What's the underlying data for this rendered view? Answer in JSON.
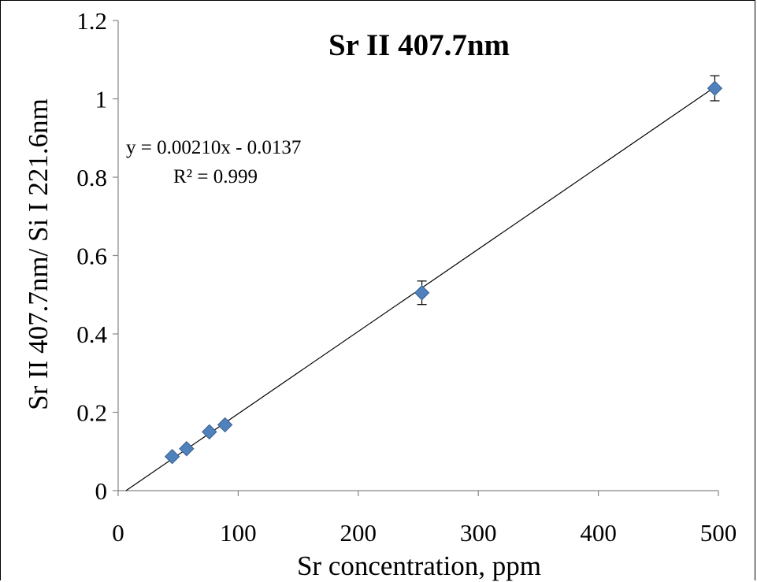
{
  "chart_data": {
    "type": "scatter",
    "title": "Sr II 407.7nm",
    "xlabel": "Sr concentration, ppm",
    "ylabel": "Sr II 407.7nm/ Si I 221.6nm",
    "xlim": [
      0,
      500
    ],
    "ylim": [
      0,
      1.2
    ],
    "x_ticks": [
      0,
      100,
      200,
      300,
      400,
      500
    ],
    "y_ticks": [
      0,
      0.2,
      0.4,
      0.6,
      0.8,
      1,
      1.2
    ],
    "grid": false,
    "legend": "none",
    "series": [
      {
        "x": [
          45,
          57,
          76,
          89,
          253,
          497
        ],
        "y": [
          0.087,
          0.107,
          0.15,
          0.168,
          0.505,
          1.027
        ],
        "error": [
          0,
          0,
          0,
          0,
          0.03,
          0.032
        ],
        "marker": "diamond",
        "color": "#4f81bd"
      }
    ],
    "trendline": {
      "slope": 0.0021,
      "intercept": -0.0137,
      "color": "#000000"
    },
    "annotations": {
      "equation": "y = 0.00210x - 0.0137",
      "r_squared": "R² = 0.999"
    }
  }
}
